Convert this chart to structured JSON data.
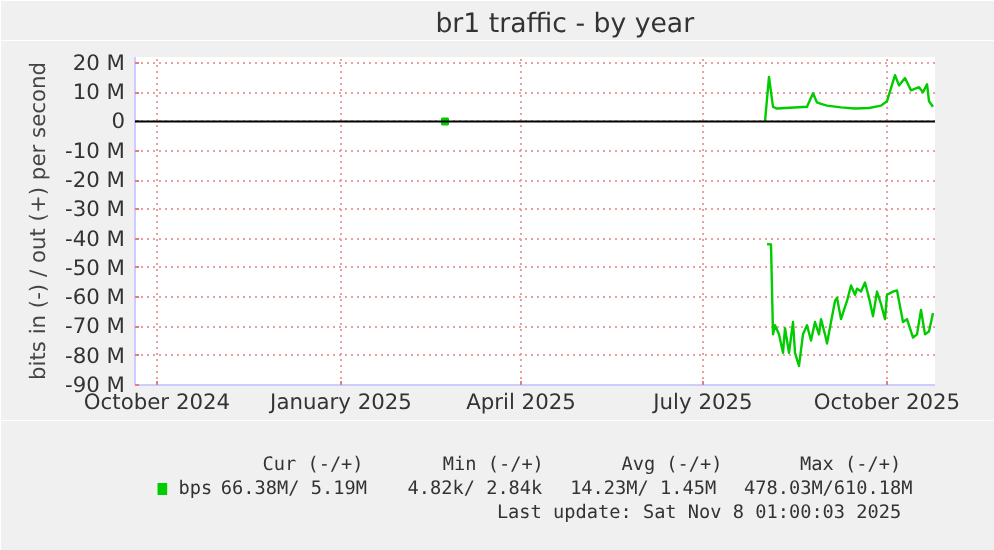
{
  "chart_data": {
    "type": "line",
    "title": "br1 traffic - by year",
    "ylabel": "bits in (-) / out (+) per second",
    "xlim": [
      "2024-10-04",
      "2025-11-08"
    ],
    "xticks": [
      {
        "value": "2024-10-15",
        "label": "October 2024"
      },
      {
        "value": "2025-01-15",
        "label": "January 2025"
      },
      {
        "value": "2025-04-15",
        "label": "April 2025"
      },
      {
        "value": "2025-07-15",
        "label": "July 2025"
      },
      {
        "value": "2025-10-15",
        "label": "October 2025"
      }
    ],
    "ylim": [
      -90,
      22
    ],
    "yticks": [
      {
        "value": 20,
        "label": "20 M"
      },
      {
        "value": 10,
        "label": "10 M"
      },
      0,
      {
        "value": -10,
        "label": "-10 M"
      },
      {
        "value": -20,
        "label": "-20 M"
      },
      {
        "value": -30,
        "label": "-30 M"
      },
      {
        "value": -40,
        "label": "-40 M"
      },
      {
        "value": -50,
        "label": "-50 M"
      },
      {
        "value": -60,
        "label": "-60 M"
      },
      {
        "value": -70,
        "label": "-70 M"
      },
      {
        "value": -80,
        "label": "-80 M"
      },
      {
        "value": -90,
        "label": "-90 M"
      }
    ],
    "grid": true,
    "legend": "bottom left",
    "ref_lines": [
      {
        "axis": "y",
        "value": 0,
        "color": "#000000"
      }
    ],
    "series": [
      {
        "name": "bps",
        "color": "#00cc00",
        "x": [
          "2025-08-15",
          "2025-08-17",
          "2025-08-19",
          "2025-08-21",
          "2025-09-05",
          "2025-09-08",
          "2025-09-10",
          "2025-09-12",
          "2025-09-15",
          "2025-09-22",
          "2025-09-29",
          "2025-10-06",
          "2025-10-12",
          "2025-10-15",
          "2025-10-19",
          "2025-10-21",
          "2025-10-24",
          "2025-10-27",
          "2025-10-31",
          "2025-11-02",
          "2025-11-04",
          "2025-11-05",
          "2025-11-07"
        ],
        "values": [
          0,
          15.2,
          5,
          4.4,
          5,
          9.6,
          6.5,
          6,
          5.4,
          4.8,
          4.4,
          4.6,
          5.4,
          6.9,
          15.8,
          12.3,
          14.8,
          10.6,
          11.7,
          10,
          12.7,
          6.9,
          5
        ]
      },
      {
        "color": "#00cc00",
        "x": [
          "2025-08-16",
          "2025-08-18",
          "2025-08-19",
          "2025-08-20",
          "2025-08-22",
          "2025-08-24",
          "2025-08-25",
          "2025-08-27",
          "2025-08-29",
          "2025-08-30",
          "2025-09-01",
          "2025-09-03",
          "2025-09-05",
          "2025-09-07",
          "2025-09-09",
          "2025-09-11",
          "2025-09-12",
          "2025-09-14",
          "2025-09-15",
          "2025-09-17",
          "2025-09-19",
          "2025-09-20",
          "2025-09-22",
          "2025-09-25",
          "2025-09-27",
          "2025-09-29",
          "2025-09-30",
          "2025-10-02",
          "2025-10-04",
          "2025-10-06",
          "2025-10-08",
          "2025-10-10",
          "2025-10-12",
          "2025-10-14",
          "2025-10-15",
          "2025-10-18",
          "2025-10-20",
          "2025-10-23",
          "2025-10-25",
          "2025-10-28",
          "2025-10-30",
          "2025-11-01",
          "2025-11-03",
          "2025-11-05",
          "2025-11-07"
        ],
        "values": [
          -41.9,
          -42,
          -72.7,
          -69.6,
          -72.7,
          -79,
          -70.6,
          -79,
          -68.5,
          -79,
          -83.5,
          -72.7,
          -69.6,
          -74.8,
          -68.5,
          -72.7,
          -67.5,
          -72.7,
          -75.8,
          -68.5,
          -61.3,
          -60.2,
          -67.5,
          -61.3,
          -56,
          -59.2,
          -57.1,
          -58.1,
          -55,
          -60.2,
          -66.5,
          -58.1,
          -62.3,
          -67.5,
          -59.2,
          -58.1,
          -57.7,
          -68.5,
          -67.5,
          -73.8,
          -72.7,
          -64.4,
          -72.7,
          -71.7,
          -65.4
        ]
      },
      {
        "type": "scatter",
        "marker": "square",
        "color": "#00cc00",
        "x": [
          "2025-03-08"
        ],
        "values": [
          0
        ]
      }
    ],
    "annotations": [
      "Cur (-/+)",
      "Min (-/+)",
      "Avg (-/+)",
      "Max (-/+)",
      "66.38M/   5.19M",
      "4.82k/   2.84k",
      "14.23M/   1.45M",
      "478.03M/610.18M",
      "Last update: Sat Nov  8 01:00:03 2025"
    ]
  }
}
